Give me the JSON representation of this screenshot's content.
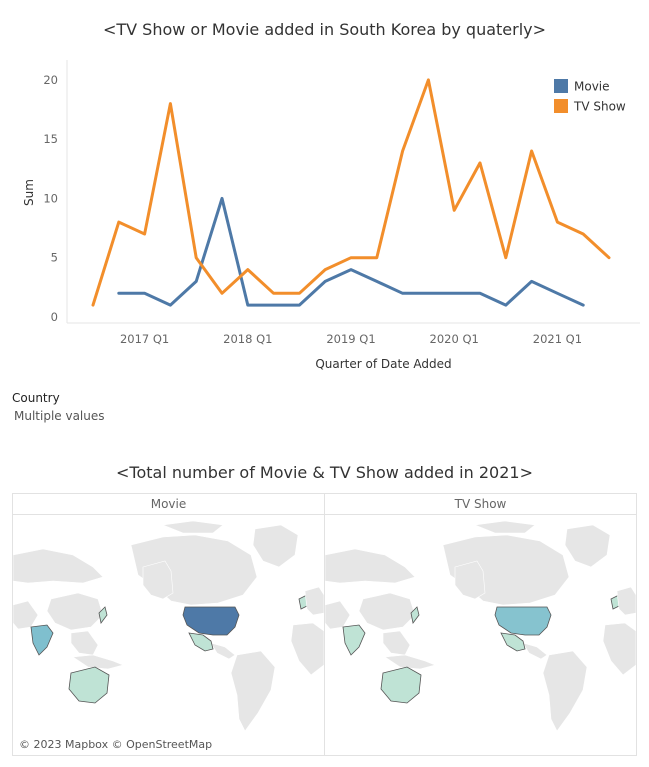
{
  "line_chart": {
    "title": "<TV Show or Movie added in South Korea by quaterly>"
  },
  "filter": {
    "label": "Country",
    "value": "Multiple values"
  },
  "map_section": {
    "title": "<Total number of Movie & TV Show added in 2021>",
    "panels": [
      "Movie",
      "TV Show"
    ],
    "attribution": "© 2023 Mapbox © OpenStreetMap",
    "base_color": "#e6e6e6",
    "country_colors": {
      "Movie": {
        "United States": "#4e79a7",
        "Mexico": "#bfe3d5",
        "India": "#7fbfce",
        "Australia": "#bfe3d5",
        "Japan": "#bfe3d5",
        "United Kingdom": "#bfe3d5"
      },
      "TV Show": {
        "United States": "#86c3cf",
        "Mexico": "#bfe3d5",
        "India": "#bfe3d5",
        "Australia": "#bfe3d5",
        "Japan": "#bfe3d5",
        "United Kingdom": "#bfe3d5"
      }
    }
  },
  "chart_data": {
    "type": "line",
    "title": "<TV Show or Movie added in South Korea by quaterly>",
    "xlabel": "Quarter of Date Added",
    "ylabel": "Sum",
    "x_tick_labels": [
      "2017 Q1",
      "2018 Q1",
      "2019 Q1",
      "2020 Q1",
      "2021 Q1"
    ],
    "y_ticks": [
      0,
      5,
      10,
      15,
      20
    ],
    "ylim": [
      0,
      21
    ],
    "grid": false,
    "legend_position": "top-right",
    "x": [
      "2016 Q3",
      "2016 Q4",
      "2017 Q1",
      "2017 Q2",
      "2017 Q3",
      "2017 Q4",
      "2018 Q1",
      "2018 Q2",
      "2018 Q3",
      "2018 Q4",
      "2019 Q1",
      "2019 Q2",
      "2019 Q3",
      "2019 Q4",
      "2020 Q1",
      "2020 Q2",
      "2020 Q3",
      "2020 Q4",
      "2021 Q1",
      "2021 Q2",
      "2021 Q3"
    ],
    "series": [
      {
        "name": "Movie",
        "color": "#4e79a7",
        "values": [
          null,
          2,
          2,
          1,
          3,
          10,
          1,
          1,
          1,
          3,
          4,
          3,
          2,
          2,
          2,
          2,
          1,
          3,
          2,
          1,
          null
        ]
      },
      {
        "name": "TV Show",
        "color": "#f28e2b",
        "values": [
          1,
          8,
          7,
          18,
          5,
          2,
          4,
          2,
          2,
          4,
          5,
          5,
          14,
          20,
          9,
          13,
          5,
          14,
          8,
          7,
          5
        ]
      }
    ]
  }
}
